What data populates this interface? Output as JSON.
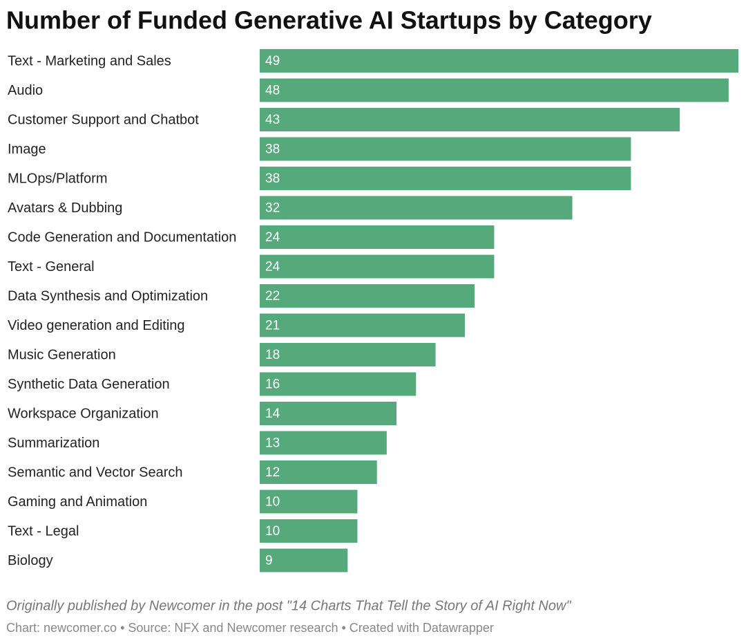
{
  "chart_data": {
    "type": "bar",
    "orientation": "horizontal",
    "title": "Number of Funded Generative AI Startups by Category",
    "categories": [
      "Text - Marketing and Sales",
      "Audio",
      "Customer Support and Chatbot",
      "Image",
      "MLOps/Platform",
      "Avatars & Dubbing",
      "Code Generation and Documentation",
      "Text - General",
      "Data Synthesis and Optimization",
      "Video generation and Editing",
      "Music Generation",
      "Synthetic Data Generation",
      "Workspace Organization",
      "Summarization",
      "Semantic and Vector Search",
      "Gaming and Animation",
      "Text - Legal",
      "Biology"
    ],
    "values": [
      49,
      48,
      43,
      38,
      38,
      32,
      24,
      24,
      22,
      21,
      18,
      16,
      14,
      13,
      12,
      10,
      10,
      9
    ],
    "color": "#55a97b",
    "note": "Originally published by Newcomer in the post \"14 Charts That Tell the Story of AI Right Now\"",
    "credits": "Chart: newcomer.co • Source: NFX and Newcomer research • Created with Datawrapper"
  }
}
